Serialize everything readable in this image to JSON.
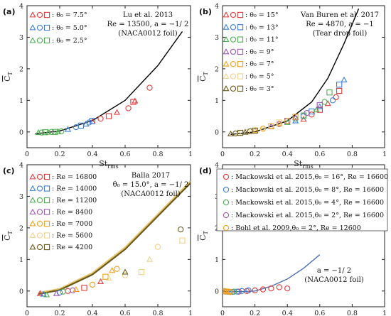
{
  "chart_data": [
    {
      "panel": "(a)",
      "type": "scatter",
      "xlabel": "St_rms",
      "ylabel": "C_T",
      "xlim": [
        0,
        1
      ],
      "ylim": [
        -0.5,
        4
      ],
      "xticks": [
        "0",
        "0.2",
        "0.4",
        "0.6",
        "0.8",
        "1"
      ],
      "yticks": [
        "0",
        "1",
        "2",
        "3",
        "4"
      ],
      "annotation": [
        "Lu et al. 2013",
        "Re = 13500, a = −1/ 2",
        "(NACA0012 foil)"
      ],
      "legend_position": "top-left",
      "curves": [
        {
          "color": "#000000",
          "points": [
            [
              0.05,
              -0.06
            ],
            [
              0.2,
              0.03
            ],
            [
              0.4,
              0.36
            ],
            [
              0.6,
              1.0
            ],
            [
              0.8,
              2.1
            ],
            [
              0.95,
              3.18
            ]
          ]
        }
      ],
      "series": [
        {
          "label": ": θ₀ = 7.5°",
          "color": "#e23a3a",
          "points": [
            [
              0.4,
              0.33
            ],
            [
              0.45,
              0.42
            ],
            [
              0.5,
              0.5
            ],
            [
              0.55,
              0.62
            ],
            [
              0.62,
              0.75
            ],
            [
              0.65,
              0.95
            ],
            [
              0.66,
              0.98
            ],
            [
              0.75,
              1.4
            ]
          ]
        },
        {
          "label": ": θ₀ = 5.0°",
          "color": "#3b7fd6",
          "points": [
            [
              0.25,
              0.08
            ],
            [
              0.3,
              0.15
            ],
            [
              0.33,
              0.2
            ],
            [
              0.36,
              0.25
            ],
            [
              0.38,
              0.3
            ],
            [
              0.4,
              0.35
            ]
          ]
        },
        {
          "label": ": θ₀ = 2.5°",
          "color": "#4caf50",
          "points": [
            [
              0.07,
              -0.02
            ],
            [
              0.09,
              -0.02
            ],
            [
              0.11,
              -0.01
            ],
            [
              0.13,
              -0.01
            ],
            [
              0.15,
              0.0
            ],
            [
              0.17,
              0.0
            ],
            [
              0.19,
              0.01
            ],
            [
              0.21,
              0.02
            ]
          ]
        }
      ]
    },
    {
      "panel": "(b)",
      "type": "scatter",
      "xlabel": "St_rms",
      "ylabel": "C_T",
      "xlim": [
        0,
        1
      ],
      "ylim": [
        -0.5,
        4
      ],
      "xticks": [
        "0",
        "0.2",
        "0.4",
        "0.6",
        "0.8",
        "1"
      ],
      "yticks": [
        "0",
        "1",
        "2",
        "3",
        "4"
      ],
      "annotation": [
        "Van Buren et al. 2017",
        "Re = 4870, a = −1",
        "(Tear drop foil)"
      ],
      "legend_position": "top-left",
      "curves": [
        {
          "color": "#000000",
          "points": [
            [
              0.05,
              -0.08
            ],
            [
              0.2,
              0.0
            ],
            [
              0.4,
              0.35
            ],
            [
              0.55,
              0.95
            ],
            [
              0.65,
              1.7
            ],
            [
              0.75,
              2.8
            ],
            [
              0.84,
              3.9
            ]
          ]
        }
      ],
      "series": [
        {
          "label": ": θ₀ = 15°",
          "color": "#e23a3a",
          "points": [
            [
              0.5,
              0.4
            ],
            [
              0.55,
              0.55
            ],
            [
              0.6,
              0.7
            ],
            [
              0.65,
              0.9
            ],
            [
              0.7,
              1.1
            ],
            [
              0.72,
              1.3
            ]
          ]
        },
        {
          "label": ": θ₀ = 13°",
          "color": "#3b7fd6",
          "points": [
            [
              0.45,
              0.35
            ],
            [
              0.5,
              0.5
            ],
            [
              0.55,
              0.65
            ],
            [
              0.6,
              0.8
            ],
            [
              0.68,
              1.0
            ],
            [
              0.72,
              1.5
            ],
            [
              0.75,
              1.65
            ]
          ]
        },
        {
          "label": ": θ₀ = 11°",
          "color": "#4caf50",
          "points": [
            [
              0.4,
              0.3
            ],
            [
              0.45,
              0.42
            ],
            [
              0.5,
              0.52
            ],
            [
              0.58,
              0.7
            ],
            [
              0.63,
              0.95
            ],
            [
              0.66,
              1.25
            ]
          ]
        },
        {
          "label": ": θ₀ = 9°",
          "color": "#9b59b6",
          "points": [
            [
              0.3,
              0.18
            ],
            [
              0.35,
              0.25
            ],
            [
              0.4,
              0.35
            ],
            [
              0.45,
              0.45
            ],
            [
              0.52,
              0.6
            ],
            [
              0.6,
              0.85
            ]
          ]
        },
        {
          "label": ": θ₀ = 7°",
          "color": "#f0a01e",
          "points": [
            [
              0.2,
              0.05
            ],
            [
              0.25,
              0.1
            ],
            [
              0.3,
              0.18
            ],
            [
              0.35,
              0.26
            ],
            [
              0.4,
              0.35
            ],
            [
              0.45,
              0.48
            ]
          ]
        },
        {
          "label": ": θ₀ = 5°",
          "color": "#f2d28a",
          "points": [
            [
              0.1,
              -0.04
            ],
            [
              0.15,
              0.0
            ],
            [
              0.2,
              0.05
            ],
            [
              0.25,
              0.12
            ],
            [
              0.3,
              0.2
            ],
            [
              0.35,
              0.3
            ]
          ]
        },
        {
          "label": ": θ₀ = 3°",
          "color": "#6b5a1e",
          "points": [
            [
              0.05,
              -0.06
            ],
            [
              0.08,
              -0.05
            ],
            [
              0.11,
              -0.03
            ],
            [
              0.14,
              -0.01
            ],
            [
              0.17,
              0.02
            ],
            [
              0.2,
              0.04
            ]
          ]
        }
      ]
    },
    {
      "panel": "(c)",
      "type": "scatter",
      "xlabel": "St_rms",
      "ylabel": "C_T",
      "xlim": [
        0,
        1
      ],
      "ylim": [
        -0.5,
        4
      ],
      "xticks": [
        "0",
        "0.2",
        "0.4",
        "0.6",
        "0.8",
        "1"
      ],
      "yticks": [
        "0",
        "1",
        "2",
        "3",
        "4"
      ],
      "annotation": [
        "Balla 2017",
        "θ₀ = 15.0°, a = −1/ 2",
        "(NACA0012 foil)"
      ],
      "legend_position": "top-left",
      "curves": [
        {
          "color": "#4caf50",
          "points": [
            [
              0.07,
              -0.08
            ],
            [
              0.2,
              0.05
            ],
            [
              0.4,
              0.55
            ],
            [
              0.6,
              1.35
            ],
            [
              0.8,
              2.4
            ],
            [
              1.0,
              3.45
            ]
          ]
        },
        {
          "color": "#e8c46a",
          "points": [
            [
              0.07,
              -0.06
            ],
            [
              0.2,
              0.07
            ],
            [
              0.4,
              0.57
            ],
            [
              0.6,
              1.38
            ],
            [
              0.8,
              2.43
            ],
            [
              1.0,
              3.48
            ]
          ]
        },
        {
          "color": "#6b5a1e",
          "points": [
            [
              0.07,
              -0.1
            ],
            [
              0.2,
              0.03
            ],
            [
              0.4,
              0.52
            ],
            [
              0.6,
              1.32
            ],
            [
              0.8,
              2.37
            ],
            [
              1.0,
              3.42
            ]
          ]
        }
      ],
      "series": [
        {
          "label": ": Re = 16800",
          "color": "#e23a3a",
          "points": [
            [
              0.08,
              -0.08
            ],
            [
              0.25,
              0.0
            ],
            [
              0.35,
              0.1
            ],
            [
              0.45,
              0.3
            ]
          ]
        },
        {
          "label": ": Re = 14000",
          "color": "#3b7fd6",
          "points": [
            [
              0.1,
              -0.1
            ],
            [
              0.2,
              -0.05
            ]
          ]
        },
        {
          "label": ": Re = 11200",
          "color": "#4caf50",
          "points": [
            [
              0.12,
              -0.12
            ],
            [
              0.22,
              -0.02
            ]
          ]
        },
        {
          "label": ": Re = 8400",
          "color": "#9b59b6",
          "points": [
            [
              0.18,
              -0.08
            ],
            [
              0.28,
              0.02
            ]
          ]
        },
        {
          "label": ": Re = 7000",
          "color": "#f0a01e",
          "points": [
            [
              0.3,
              0.05
            ],
            [
              0.4,
              0.2
            ],
            [
              0.48,
              0.45
            ],
            [
              0.52,
              0.65
            ],
            [
              0.55,
              0.7
            ]
          ]
        },
        {
          "label": ": Re = 5600",
          "color": "#f2d28a",
          "points": [
            [
              0.5,
              0.4
            ],
            [
              0.6,
              0.5
            ],
            [
              0.7,
              0.6
            ],
            [
              0.75,
              1.0
            ],
            [
              0.8,
              1.4
            ],
            [
              0.95,
              1.6
            ]
          ]
        },
        {
          "label": ": Re = 4200",
          "color": "#6b5a1e",
          "points": [
            [
              0.6,
              0.6
            ],
            [
              0.94,
              1.95
            ]
          ]
        }
      ]
    },
    {
      "panel": "(d)",
      "type": "scatter",
      "xlabel": "St_rms",
      "ylabel": "C_T",
      "xlim": [
        0,
        1
      ],
      "ylim": [
        -0.5,
        4
      ],
      "xticks": [
        "0",
        "0.2",
        "0.4",
        "0.6",
        "0.8",
        "1"
      ],
      "yticks": [
        "0",
        "1",
        "2",
        "3",
        "4"
      ],
      "annotation": [
        "a = −1/ 2",
        "(NACA0012 foil)"
      ],
      "legend_position": "top",
      "curves": [
        {
          "color": "#4a6fb5",
          "points": [
            [
              0.0,
              -0.02
            ],
            [
              0.1,
              -0.02
            ],
            [
              0.2,
              0.0
            ],
            [
              0.3,
              0.15
            ],
            [
              0.4,
              0.38
            ],
            [
              0.5,
              0.72
            ],
            [
              0.6,
              1.15
            ]
          ]
        }
      ],
      "series": [
        {
          "label": ": Mackowski et al. 2015,θ₀ = 16°, Re = 16600",
          "color": "#e23a3a",
          "points": [
            [
              0.05,
              -0.03
            ],
            [
              0.1,
              -0.02
            ],
            [
              0.15,
              0.0
            ],
            [
              0.2,
              0.02
            ],
            [
              0.25,
              0.05
            ],
            [
              0.3,
              0.08
            ],
            [
              0.35,
              0.12
            ],
            [
              0.4,
              0.08
            ]
          ]
        },
        {
          "label": ": Mackowski et al. 2015,θ₀ = 8°, Re = 16600",
          "color": "#3b7fd6",
          "points": [
            [
              0.03,
              -0.02
            ],
            [
              0.06,
              -0.03
            ],
            [
              0.09,
              -0.02
            ],
            [
              0.12,
              0.0
            ],
            [
              0.16,
              0.02
            ]
          ]
        },
        {
          "label": ": Mackowski et al. 2015,θ₀ = 4°, Re = 16600",
          "color": "#4caf50",
          "points": [
            [
              0.02,
              -0.02
            ],
            [
              0.04,
              -0.03
            ],
            [
              0.07,
              -0.02
            ]
          ]
        },
        {
          "label": ": Mackowski et al. 2015,θ₀ = 2°, Re = 16600",
          "color": "#9b59b6",
          "points": [
            [
              0.01,
              -0.01
            ],
            [
              0.03,
              -0.02
            ],
            [
              0.05,
              -0.03
            ]
          ]
        },
        {
          "label": ": Bohl et al. 2009,θ₀ = 2°, Re = 12600",
          "color": "#f0a01e",
          "points": [
            [
              0.01,
              0.0
            ],
            [
              0.02,
              -0.01
            ],
            [
              0.03,
              -0.02
            ],
            [
              0.04,
              -0.02
            ],
            [
              0.05,
              -0.03
            ]
          ]
        }
      ]
    }
  ]
}
